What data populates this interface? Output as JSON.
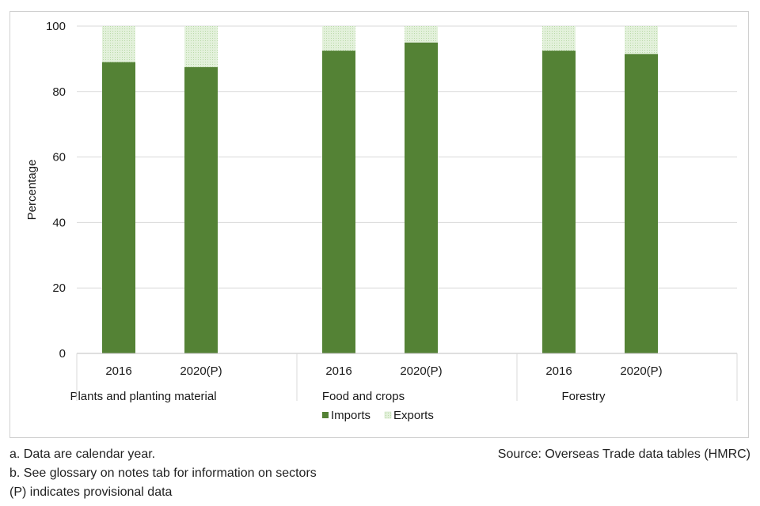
{
  "chart_data": {
    "type": "bar",
    "stacked": true,
    "ylabel": "Percentage",
    "ylim": [
      0,
      100
    ],
    "yticks": [
      0,
      20,
      40,
      60,
      80,
      100
    ],
    "grid": true,
    "groups": [
      {
        "label": "Plants and planting material",
        "categories": [
          "2016",
          "2020(P)"
        ]
      },
      {
        "label": "Food and crops",
        "categories": [
          "2016",
          "2020(P)"
        ]
      },
      {
        "label": "Forestry",
        "categories": [
          "2016",
          "2020(P)"
        ]
      }
    ],
    "series": [
      {
        "name": "Imports",
        "color": "#548235",
        "values": [
          89,
          87.5,
          92.5,
          95,
          92.5,
          91.5
        ]
      },
      {
        "name": "Exports",
        "color": "#d9ecd0",
        "values": [
          11,
          12.5,
          7.5,
          5,
          7.5,
          8.5
        ]
      }
    ],
    "legend_position": "bottom"
  },
  "notes": {
    "line_a": "a. Data are calendar year.",
    "line_b": "b. See glossary on notes tab for information on sectors",
    "line_p": "(P) indicates provisional data",
    "source": "Source: Overseas Trade data tables (HMRC)"
  }
}
